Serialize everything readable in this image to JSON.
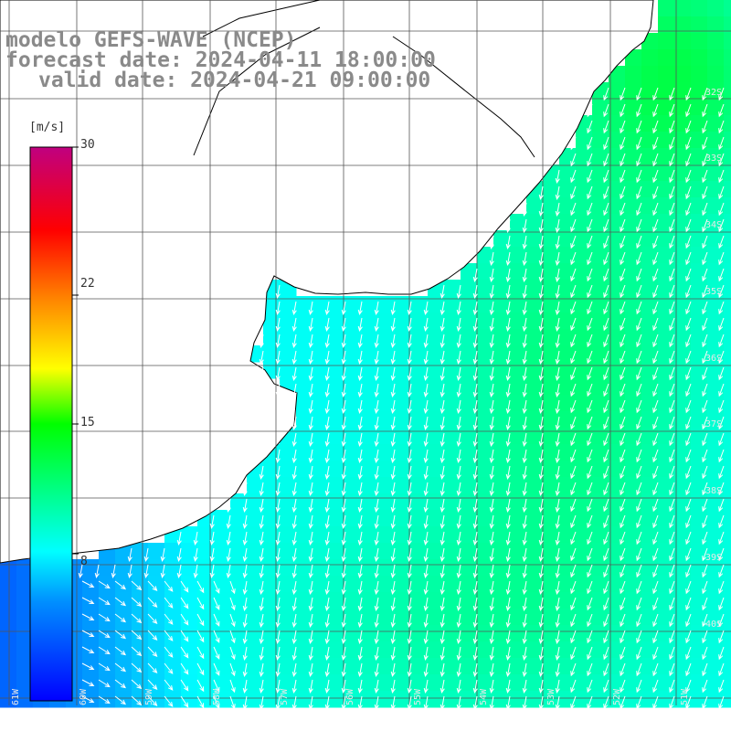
{
  "title": {
    "line1": "modelo GEFS-WAVE (NCEP)",
    "line2": "forecast date: 2024-04-11 18:00:00",
    "line3": "valid date: 2024-04-21 09:00:00"
  },
  "colorbar": {
    "unit_label": "[m/s]",
    "min": 0,
    "max": 30,
    "tick_labels": [
      "30",
      "22",
      "15",
      "8"
    ],
    "tick_values": [
      30,
      22,
      15,
      8
    ],
    "colors": [
      "#0000ff",
      "#00c0ff",
      "#00ffff",
      "#00ff00",
      "#ffff00",
      "#ff8000",
      "#ff0000",
      "#c00080"
    ]
  },
  "axes": {
    "lon_labels": [
      "61W",
      "60W",
      "59W",
      "58W",
      "57W",
      "56W",
      "55W",
      "54W",
      "53W",
      "52W",
      "51W"
    ],
    "lat_labels": [
      "32S",
      "33S",
      "34S",
      "35S",
      "36S",
      "37S",
      "38S",
      "39S",
      "40S"
    ]
  },
  "map": {
    "land_color": "#ffffff",
    "coast_color": "#000000",
    "grid_color": "#555555",
    "arrow_color": "#ffffff"
  }
}
